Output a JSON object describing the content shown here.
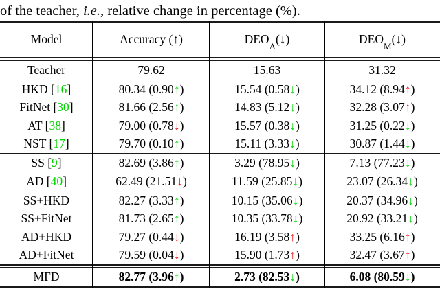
{
  "colors": {
    "green": "#00d400",
    "red": "#e60000"
  },
  "caption": {
    "pre": "of the teacher, ",
    "em": "i.e.",
    "post": ", relative change in percentage (%)."
  },
  "table": {
    "header": {
      "cols": [
        {
          "pre": "Model",
          "sub": "",
          "post": ""
        },
        {
          "pre": "Accuracy (↑)",
          "sub": "",
          "post": ""
        },
        {
          "pre": "DEO",
          "sub": "A",
          "post": " (↓)"
        },
        {
          "pre": "DEO",
          "sub": "M",
          "post": " (↓)"
        }
      ]
    },
    "rows": [
      {
        "m": {
          "pre": "Teacher",
          "cite": "",
          "post": ""
        },
        "c1": {
          "pre": "79.62",
          "ar": "",
          "cls": "ar",
          "post": ""
        },
        "c2": {
          "pre": "15.63",
          "ar": "",
          "cls": "ar",
          "post": ""
        },
        "c3": {
          "pre": "31.32",
          "ar": "",
          "cls": "ar",
          "post": ""
        }
      },
      {
        "m": {
          "pre": "HKD [",
          "cite": "16",
          "post": "]"
        },
        "c1": {
          "pre": "80.34 (0.90 ",
          "ar": "↑",
          "cls": "ar g",
          "post": ")"
        },
        "c2": {
          "pre": "15.54 (0.58 ",
          "ar": "↓",
          "cls": "ar g",
          "post": ")"
        },
        "c3": {
          "pre": "34.12 (8.94 ",
          "ar": "↑",
          "cls": "ar r",
          "post": ")"
        }
      },
      {
        "m": {
          "pre": "FitNet [",
          "cite": "30",
          "post": "]"
        },
        "c1": {
          "pre": "81.66 (2.56 ",
          "ar": "↑",
          "cls": "ar g",
          "post": ")"
        },
        "c2": {
          "pre": "14.83 (5.12 ",
          "ar": "↓",
          "cls": "ar g",
          "post": ")"
        },
        "c3": {
          "pre": "32.28 (3.07 ",
          "ar": "↑",
          "cls": "ar r",
          "post": ")"
        }
      },
      {
        "m": {
          "pre": "AT [",
          "cite": "38",
          "post": "]"
        },
        "c1": {
          "pre": "79.00 (0.78 ",
          "ar": "↓",
          "cls": "ar r",
          "post": ")"
        },
        "c2": {
          "pre": "15.57 (0.38 ",
          "ar": "↓",
          "cls": "ar g",
          "post": ")"
        },
        "c3": {
          "pre": "31.25 (0.22 ",
          "ar": "↓",
          "cls": "ar g",
          "post": ")"
        }
      },
      {
        "m": {
          "pre": "NST [",
          "cite": "17",
          "post": "]"
        },
        "c1": {
          "pre": "79.70 (0.10 ",
          "ar": "↑",
          "cls": "ar g",
          "post": ")"
        },
        "c2": {
          "pre": "15.11 (3.33 ",
          "ar": "↓",
          "cls": "ar g",
          "post": ")"
        },
        "c3": {
          "pre": "30.87 (1.44 ",
          "ar": "↓",
          "cls": "ar g",
          "post": ")"
        }
      },
      {
        "m": {
          "pre": "SS [",
          "cite": "9",
          "post": "]"
        },
        "c1": {
          "pre": "82.69 (3.86 ",
          "ar": "↑",
          "cls": "ar g",
          "post": ")"
        },
        "c2": {
          "pre": "3.29 (78.95 ",
          "ar": "↓",
          "cls": "ar g",
          "post": ")"
        },
        "c3": {
          "pre": "7.13 (77.23 ",
          "ar": "↓",
          "cls": "ar g",
          "post": ")"
        }
      },
      {
        "m": {
          "pre": "AD [",
          "cite": "40",
          "post": "]"
        },
        "c1": {
          "pre": "62.49 (21.51 ",
          "ar": "↓",
          "cls": "ar r",
          "post": ")"
        },
        "c2": {
          "pre": "11.59 (25.85 ",
          "ar": "↓",
          "cls": "ar g",
          "post": ")"
        },
        "c3": {
          "pre": "23.07 (26.34 ",
          "ar": "↓",
          "cls": "ar g",
          "post": ")"
        }
      },
      {
        "m": {
          "pre": "SS+HKD",
          "cite": "",
          "post": ""
        },
        "c1": {
          "pre": "82.27 (3.33 ",
          "ar": "↑",
          "cls": "ar g",
          "post": ")"
        },
        "c2": {
          "pre": "10.15 (35.06 ",
          "ar": "↓",
          "cls": "ar g",
          "post": ")"
        },
        "c3": {
          "pre": "20.37 (34.96 ",
          "ar": "↓",
          "cls": "ar g",
          "post": ")"
        }
      },
      {
        "m": {
          "pre": "SS+FitNet",
          "cite": "",
          "post": ""
        },
        "c1": {
          "pre": "81.73 (2.65 ",
          "ar": "↑",
          "cls": "ar g",
          "post": ")"
        },
        "c2": {
          "pre": "10.35 (33.78 ",
          "ar": "↓",
          "cls": "ar g",
          "post": ")"
        },
        "c3": {
          "pre": "20.92 (33.21 ",
          "ar": "↓",
          "cls": "ar g",
          "post": ")"
        }
      },
      {
        "m": {
          "pre": "AD+HKD",
          "cite": "",
          "post": ""
        },
        "c1": {
          "pre": "79.27 (0.44 ",
          "ar": "↓",
          "cls": "ar r",
          "post": ")"
        },
        "c2": {
          "pre": "16.19 (3.58 ",
          "ar": "↑",
          "cls": "ar r",
          "post": ")"
        },
        "c3": {
          "pre": "33.25 (6.16 ",
          "ar": "↑",
          "cls": "ar r",
          "post": ")"
        }
      },
      {
        "m": {
          "pre": "AD+FitNet",
          "cite": "",
          "post": ""
        },
        "c1": {
          "pre": "79.59 (0.04 ",
          "ar": "↓",
          "cls": "ar r",
          "post": ")"
        },
        "c2": {
          "pre": "15.90 (1.73 ",
          "ar": "↑",
          "cls": "ar r",
          "post": ")"
        },
        "c3": {
          "pre": "32.47 (3.67 ",
          "ar": "↑",
          "cls": "ar r",
          "post": ")"
        }
      },
      {
        "m": {
          "pre": "MFD",
          "cite": "",
          "post": ""
        },
        "c1": {
          "pre": "82.77 (3.96 ",
          "ar": "↑",
          "cls": "ar g",
          "post": ")"
        },
        "c2": {
          "pre": "2.73 (82.53 ",
          "ar": "↓",
          "cls": "ar g",
          "post": ")"
        },
        "c3": {
          "pre": "6.08 (80.59 ",
          "ar": "↓",
          "cls": "ar g",
          "post": ")"
        }
      }
    ]
  }
}
